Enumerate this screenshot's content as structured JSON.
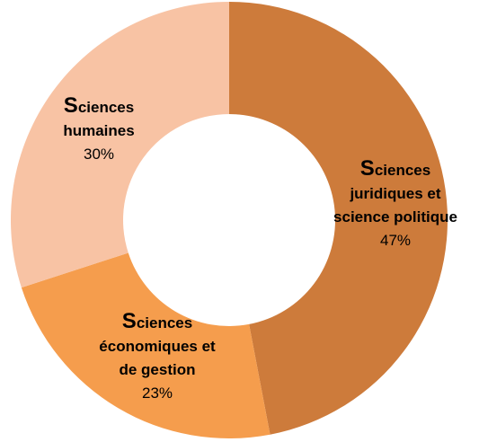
{
  "chart_data": {
    "type": "donut",
    "categories": [
      "Sciences juridiques et science politique",
      "Sciences économiques et de gestion",
      "Sciences humaines"
    ],
    "values": [
      47,
      23,
      30
    ],
    "value_labels": [
      "47%",
      "23%",
      "30%"
    ],
    "colors": [
      "#cd7b3b",
      "#f59d4d",
      "#f8c3a4"
    ]
  }
}
